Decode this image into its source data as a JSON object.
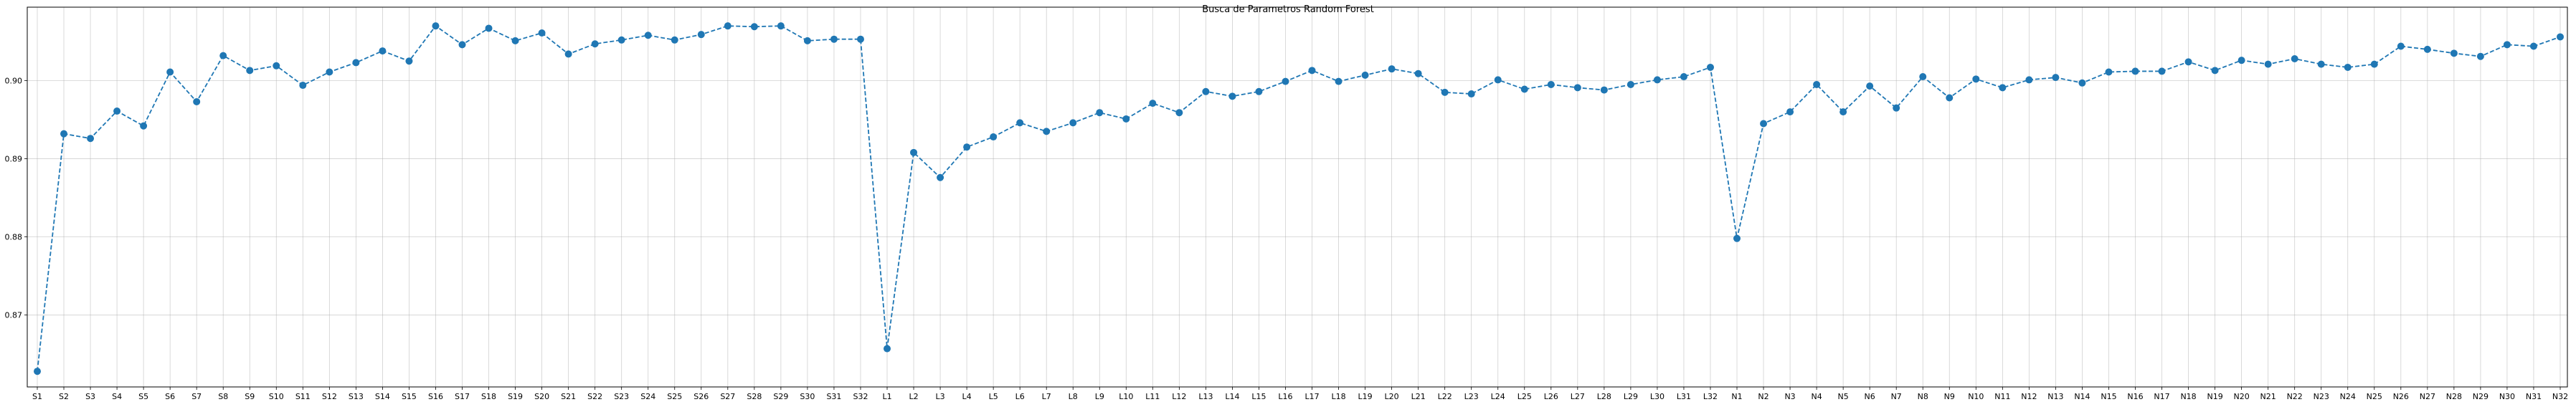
{
  "chart_data": {
    "type": "line",
    "title": "Busca de Parametros Random Forest",
    "xlabel": "",
    "ylabel": "",
    "grid": true,
    "ylim": [
      0.8608,
      0.9094
    ],
    "yticks": [
      "0.87",
      "0.88",
      "0.89",
      "0.90"
    ],
    "ytick_values": [
      0.87,
      0.88,
      0.89,
      0.9
    ],
    "line_color": "#1f77b4",
    "line_style": "dashed",
    "marker": "circle",
    "categories": [
      "S1",
      "S2",
      "S3",
      "S4",
      "S5",
      "S6",
      "S7",
      "S8",
      "S9",
      "S10",
      "S11",
      "S12",
      "S13",
      "S14",
      "S15",
      "S16",
      "S17",
      "S18",
      "S19",
      "S20",
      "S21",
      "S22",
      "S23",
      "S24",
      "S25",
      "S26",
      "S27",
      "S28",
      "S29",
      "S30",
      "S31",
      "S32",
      "L1",
      "L2",
      "L3",
      "L4",
      "L5",
      "L6",
      "L7",
      "L8",
      "L9",
      "L10",
      "L11",
      "L12",
      "L13",
      "L14",
      "L15",
      "L16",
      "L17",
      "L18",
      "L19",
      "L20",
      "L21",
      "L22",
      "L23",
      "L24",
      "L25",
      "L26",
      "L27",
      "L28",
      "L29",
      "L30",
      "L31",
      "L32",
      "N1",
      "N2",
      "N3",
      "N4",
      "N5",
      "N6",
      "N7",
      "N8",
      "N9",
      "N10",
      "N11",
      "N12",
      "N13",
      "N14",
      "N15",
      "N16",
      "N17",
      "N18",
      "N19",
      "N20",
      "N21",
      "N22",
      "N23",
      "N24",
      "N25",
      "N26",
      "N27",
      "N28",
      "N29",
      "N30",
      "N31",
      "N32"
    ],
    "values": [
      0.8628,
      0.8932,
      0.8926,
      0.8961,
      0.8942,
      0.9011,
      0.8973,
      0.9032,
      0.9013,
      0.9019,
      0.8994,
      0.9011,
      0.9023,
      0.9038,
      0.9025,
      0.907,
      0.9046,
      0.9067,
      0.9051,
      0.9061,
      0.9034,
      0.9047,
      0.9052,
      0.9058,
      0.9052,
      0.9059,
      0.907,
      0.9069,
      0.907,
      0.9051,
      0.9053,
      0.9053,
      0.8657,
      0.8908,
      0.8876,
      0.8915,
      0.8928,
      0.8946,
      0.8935,
      0.8946,
      0.8959,
      0.8951,
      0.8971,
      0.8959,
      0.8986,
      0.898,
      0.8986,
      0.8999,
      0.9013,
      0.8999,
      0.9007,
      0.9015,
      0.9009,
      0.8985,
      0.8983,
      0.9001,
      0.8989,
      0.8995,
      0.8991,
      0.8988,
      0.8995,
      0.9001,
      0.9005,
      0.9017,
      0.8798,
      0.8945,
      0.896,
      0.8995,
      0.896,
      0.8993,
      0.8965,
      0.9005,
      0.8978,
      0.9002,
      0.8991,
      0.9001,
      0.9004,
      0.8997,
      0.9011,
      0.9012,
      0.9012,
      0.9024,
      0.9013,
      0.9026,
      0.9021,
      0.9028,
      0.9021,
      0.9017,
      0.9021,
      0.9044,
      0.904,
      0.9035,
      0.9031,
      0.9046,
      0.9044,
      0.9056
    ]
  }
}
